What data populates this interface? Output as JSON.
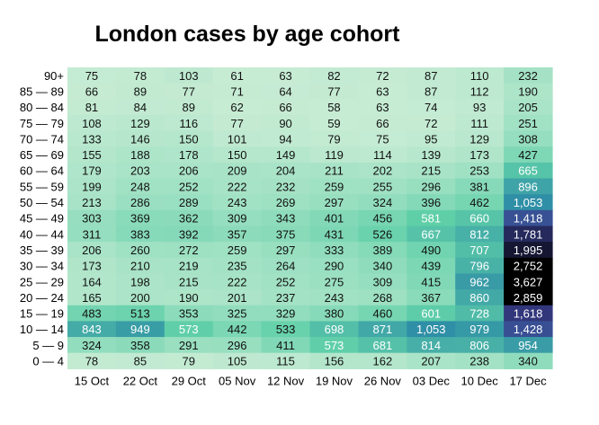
{
  "chart_data": {
    "type": "heatmap",
    "title": "London cases by age cohort",
    "xlabel": "",
    "ylabel": "",
    "columns": [
      "15 Oct",
      "22 Oct",
      "29 Oct",
      "05 Nov",
      "12 Nov",
      "19 Nov",
      "26 Nov",
      "03 Dec",
      "10 Dec",
      "17 Dec"
    ],
    "rows": [
      "90+",
      "85 — 89",
      "80 — 84",
      "75 — 79",
      "70 — 74",
      "65 — 69",
      "60 — 64",
      "55 — 59",
      "50 — 54",
      "45 — 49",
      "40 — 44",
      "35 — 39",
      "30 — 34",
      "25 — 29",
      "20 — 24",
      "15 — 19",
      "10 — 14",
      "5 — 9",
      "0 — 4"
    ],
    "values": [
      [
        75,
        78,
        103,
        61,
        63,
        82,
        72,
        87,
        110,
        232
      ],
      [
        66,
        89,
        77,
        71,
        64,
        77,
        63,
        87,
        112,
        190
      ],
      [
        81,
        84,
        89,
        62,
        66,
        58,
        63,
        74,
        93,
        205
      ],
      [
        108,
        129,
        116,
        77,
        90,
        59,
        66,
        72,
        111,
        251
      ],
      [
        133,
        146,
        150,
        101,
        94,
        79,
        75,
        95,
        129,
        308
      ],
      [
        155,
        188,
        178,
        150,
        149,
        119,
        114,
        139,
        173,
        427
      ],
      [
        179,
        203,
        206,
        209,
        204,
        211,
        202,
        215,
        253,
        665
      ],
      [
        199,
        248,
        252,
        222,
        232,
        259,
        255,
        296,
        381,
        896
      ],
      [
        213,
        286,
        289,
        243,
        269,
        297,
        324,
        396,
        462,
        1053
      ],
      [
        303,
        369,
        362,
        309,
        343,
        401,
        456,
        581,
        660,
        1418
      ],
      [
        311,
        383,
        392,
        357,
        375,
        431,
        526,
        667,
        812,
        1781
      ],
      [
        206,
        260,
        272,
        259,
        297,
        333,
        389,
        490,
        707,
        1995
      ],
      [
        173,
        210,
        219,
        235,
        264,
        290,
        340,
        439,
        796,
        2752
      ],
      [
        164,
        198,
        215,
        222,
        252,
        275,
        309,
        415,
        962,
        3627
      ],
      [
        165,
        200,
        190,
        201,
        237,
        243,
        268,
        367,
        860,
        2859
      ],
      [
        483,
        513,
        353,
        325,
        329,
        380,
        460,
        601,
        728,
        1618
      ],
      [
        843,
        949,
        573,
        442,
        533,
        698,
        871,
        1053,
        979,
        1428
      ],
      [
        324,
        358,
        291,
        296,
        411,
        573,
        681,
        814,
        806,
        954
      ],
      [
        78,
        85,
        79,
        105,
        115,
        156,
        162,
        207,
        238,
        340
      ]
    ],
    "colors": [
      "#d3efd9",
      "#5fcfa8",
      "#2f8fa6",
      "#3a3f8f",
      "#000000"
    ]
  }
}
